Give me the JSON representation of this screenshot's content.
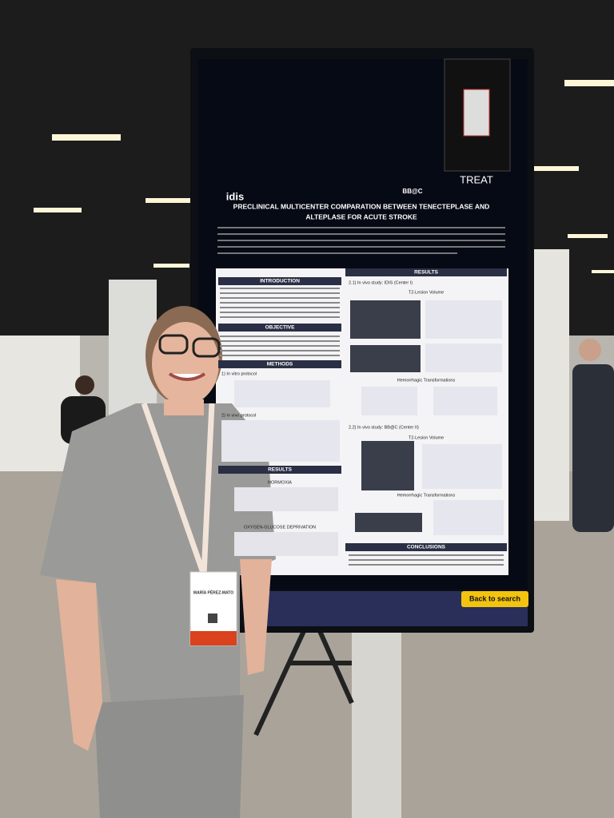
{
  "poster": {
    "logos": [
      "idis",
      "BB@C",
      "TREAT"
    ],
    "title": [
      "PRECLINICAL MULTICENTER COMPARATION BETWEEN TENECTEPLASE AND",
      "ALTEPLASE FOR ACUTE STROKE"
    ],
    "left_sections": [
      "INTRODUCTION",
      "OBJECTIVE",
      "METHODS",
      "RESULTS"
    ],
    "left_subsections": [
      "1) In vitro protocol",
      "2) In vivo protocol",
      "NORMOXIA",
      "OXYGEN-GLUCOSE DEPRIVATION"
    ],
    "right_sections": [
      "RESULTS",
      "CONCLUSIONS"
    ],
    "right_subsections": [
      "2.1) In vivo study: IDIS (Center I)",
      "T2-Lesion Volume",
      "Hemorrhagic Transformations",
      "2.2) In vivo study: BB@C (Center II)",
      "T2-Lesion Volume",
      "Hemorrhagic Transformations"
    ],
    "button": "Back to search"
  },
  "badge": {
    "name": "MARÍA PÉREZ-MATO"
  }
}
